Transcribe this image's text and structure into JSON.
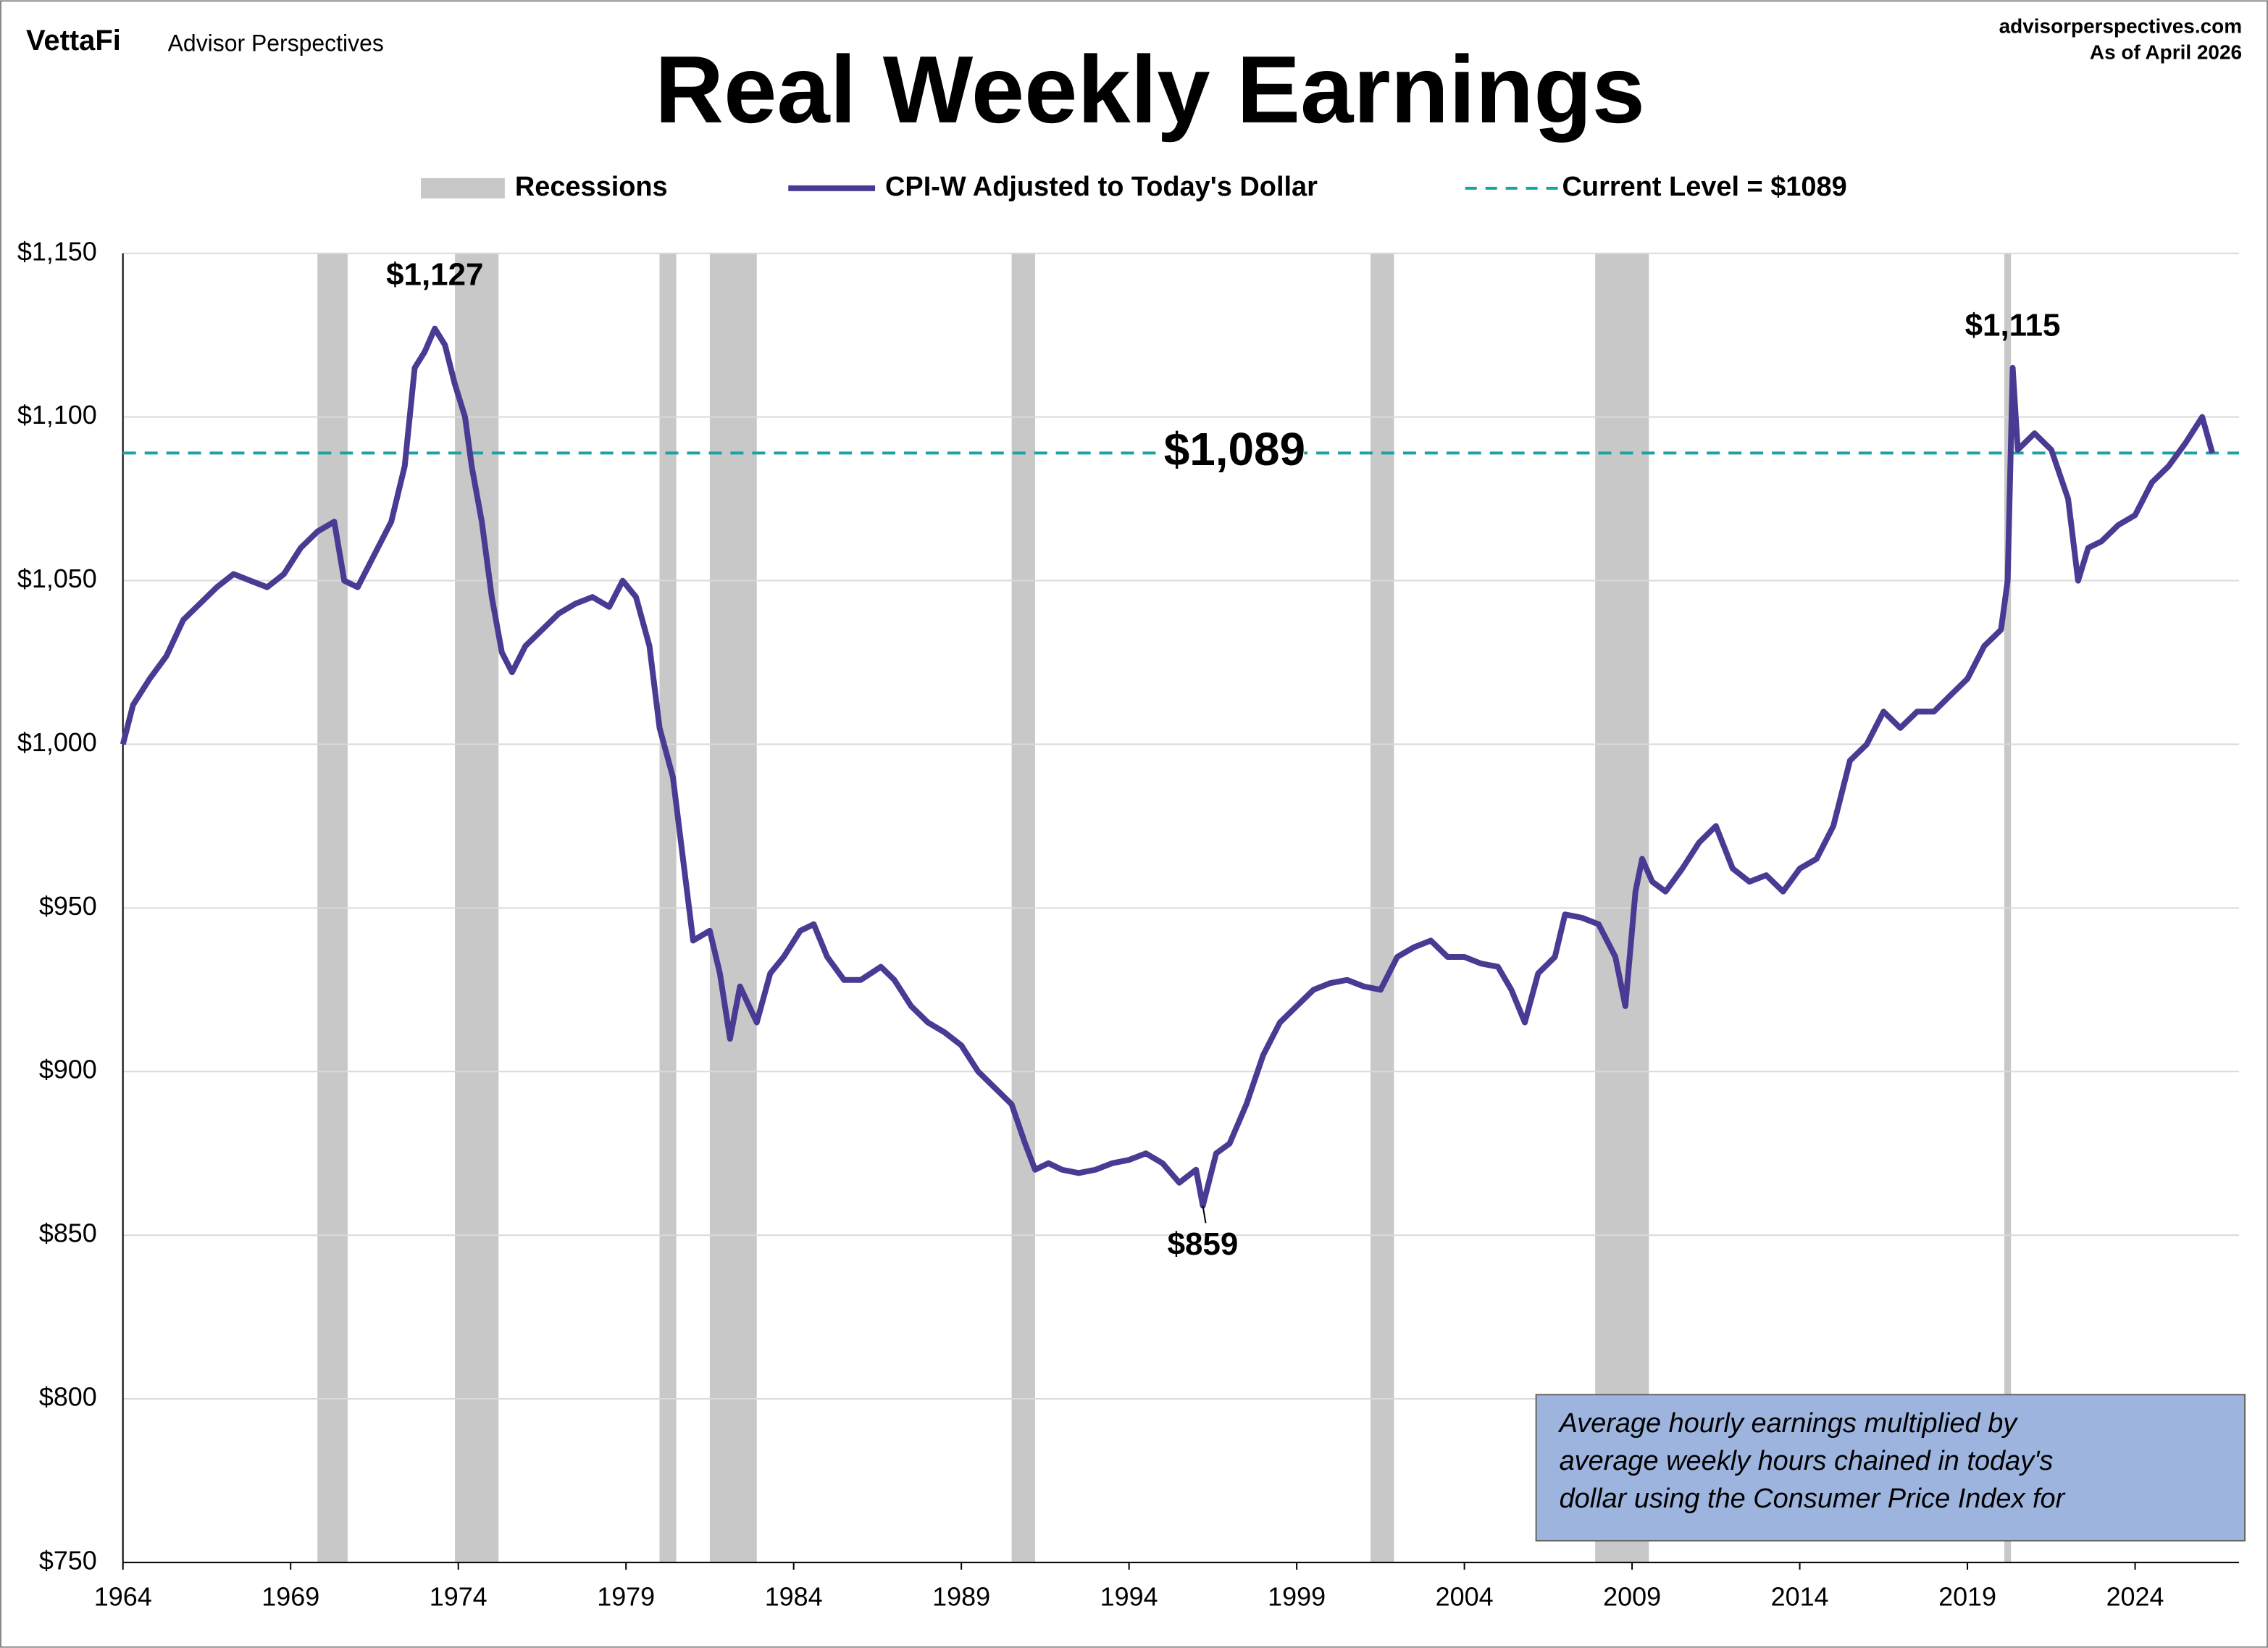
{
  "header": {
    "brand": "VettaFi",
    "brand_sub": "Advisor Perspectives",
    "site": "advisorperspectives.com",
    "as_of": "As of April 2026"
  },
  "chart_data": {
    "type": "line",
    "title": "Real Weekly Earnings",
    "xlim": [
      1964,
      2027.1
    ],
    "xticks": [
      1964,
      1969,
      1974,
      1979,
      1984,
      1989,
      1994,
      1999,
      2004,
      2009,
      2014,
      2019,
      2024
    ],
    "ylim": [
      750,
      1150
    ],
    "yticks": [
      {
        "value": 750,
        "label": "$750"
      },
      {
        "value": 800,
        "label": "$800"
      },
      {
        "value": 850,
        "label": "$850"
      },
      {
        "value": 900,
        "label": "$900"
      },
      {
        "value": 950,
        "label": "$950"
      },
      {
        "value": 1000,
        "label": "$1,000"
      },
      {
        "value": 1050,
        "label": "$1,050"
      },
      {
        "value": 1100,
        "label": "$1,100"
      },
      {
        "value": 1150,
        "label": "$1,150"
      }
    ],
    "grid": true,
    "recessions_name": "Recessions",
    "recessions_color": "#c8c8c8",
    "recessions": [
      [
        1969.8,
        1970.7
      ],
      [
        1973.9,
        1975.2
      ],
      [
        1980.0,
        1980.5
      ],
      [
        1981.5,
        1982.9
      ],
      [
        1990.5,
        1991.2
      ],
      [
        2001.2,
        2001.9
      ],
      [
        2007.9,
        2009.5
      ],
      [
        2020.1,
        2020.3
      ]
    ],
    "current_name": "Current Level = $1089",
    "current_level": 1089,
    "current_color": "#1aa3a3",
    "series": [
      {
        "name": "CPI-W Adjusted to Today's Dollar",
        "color": "#4b3a93",
        "x": [
          1964.0,
          1964.3,
          1964.8,
          1965.3,
          1965.8,
          1966.3,
          1966.8,
          1967.3,
          1967.8,
          1968.3,
          1968.8,
          1969.3,
          1969.8,
          1970.3,
          1970.6,
          1971.0,
          1971.5,
          1972.0,
          1972.4,
          1972.7,
          1973.0,
          1973.3,
          1973.6,
          1973.9,
          1974.2,
          1974.4,
          1974.7,
          1975.0,
          1975.3,
          1975.6,
          1976.0,
          1976.5,
          1977.0,
          1977.5,
          1978.0,
          1978.5,
          1978.9,
          1979.3,
          1979.7,
          1980.0,
          1980.4,
          1980.7,
          1981.0,
          1981.5,
          1981.8,
          1982.1,
          1982.4,
          1982.9,
          1983.3,
          1983.7,
          1984.2,
          1984.6,
          1985.0,
          1985.5,
          1986.0,
          1986.6,
          1987.0,
          1987.5,
          1988.0,
          1988.5,
          1989.0,
          1989.5,
          1990.0,
          1990.5,
          1990.9,
          1991.2,
          1991.6,
          1992.0,
          1992.5,
          1993.0,
          1993.5,
          1994.0,
          1994.5,
          1995.0,
          1995.5,
          1996.0,
          1996.2,
          1996.6,
          1997.0,
          1997.5,
          1998.0,
          1998.5,
          1999.0,
          1999.5,
          2000.0,
          2000.5,
          2001.0,
          2001.5,
          2002.0,
          2002.5,
          2003.0,
          2003.5,
          2004.0,
          2004.5,
          2005.0,
          2005.4,
          2005.8,
          2006.2,
          2006.7,
          2007.0,
          2007.5,
          2008.0,
          2008.5,
          2008.8,
          2009.1,
          2009.3,
          2009.6,
          2010.0,
          2010.5,
          2011.0,
          2011.5,
          2012.0,
          2012.5,
          2013.0,
          2013.5,
          2014.0,
          2014.5,
          2015.0,
          2015.5,
          2016.0,
          2016.5,
          2017.0,
          2017.5,
          2018.0,
          2018.5,
          2019.0,
          2019.5,
          2020.0,
          2020.2,
          2020.35,
          2020.5,
          2021.0,
          2021.5,
          2022.0,
          2022.3,
          2022.6,
          2023.0,
          2023.5,
          2024.0,
          2024.5,
          2025.0,
          2025.5,
          2026.0,
          2026.3
        ],
        "values": [
          1000,
          1012,
          1020,
          1027,
          1038,
          1043,
          1048,
          1052,
          1050,
          1048,
          1052,
          1060,
          1065,
          1068,
          1050,
          1048,
          1058,
          1068,
          1085,
          1115,
          1120,
          1127,
          1122,
          1110,
          1100,
          1085,
          1068,
          1045,
          1028,
          1022,
          1030,
          1035,
          1040,
          1043,
          1045,
          1042,
          1050,
          1045,
          1030,
          1005,
          990,
          965,
          940,
          943,
          930,
          910,
          926,
          915,
          930,
          935,
          943,
          945,
          935,
          928,
          928,
          932,
          928,
          920,
          915,
          912,
          908,
          900,
          895,
          890,
          878,
          870,
          872,
          870,
          869,
          870,
          872,
          873,
          875,
          872,
          866,
          870,
          859,
          875,
          878,
          890,
          905,
          915,
          920,
          925,
          927,
          928,
          926,
          925,
          935,
          938,
          940,
          935,
          935,
          933,
          932,
          925,
          915,
          930,
          935,
          948,
          947,
          945,
          935,
          920,
          955,
          965,
          958,
          955,
          962,
          970,
          975,
          962,
          958,
          960,
          955,
          962,
          965,
          975,
          995,
          1000,
          1010,
          1005,
          1010,
          1010,
          1015,
          1020,
          1030,
          1035,
          1050,
          1115,
          1090,
          1095,
          1090,
          1075,
          1050,
          1060,
          1062,
          1067,
          1070,
          1080,
          1085,
          1092,
          1100,
          1089
        ]
      }
    ],
    "annotations": [
      {
        "label": "$1,127",
        "x": 1973.3,
        "value": 1127
      },
      {
        "label": "$1,115",
        "x": 2020.35,
        "value": 1115
      },
      {
        "label": "$859",
        "x": 1996.2,
        "value": 859
      },
      {
        "label": "$1,089",
        "x": 1996.2,
        "value": 1089
      }
    ],
    "note": [
      "Average hourly earnings multiplied by",
      "average weekly hours chained in today's",
      "dollar using the  Consumer Price Index for"
    ]
  }
}
